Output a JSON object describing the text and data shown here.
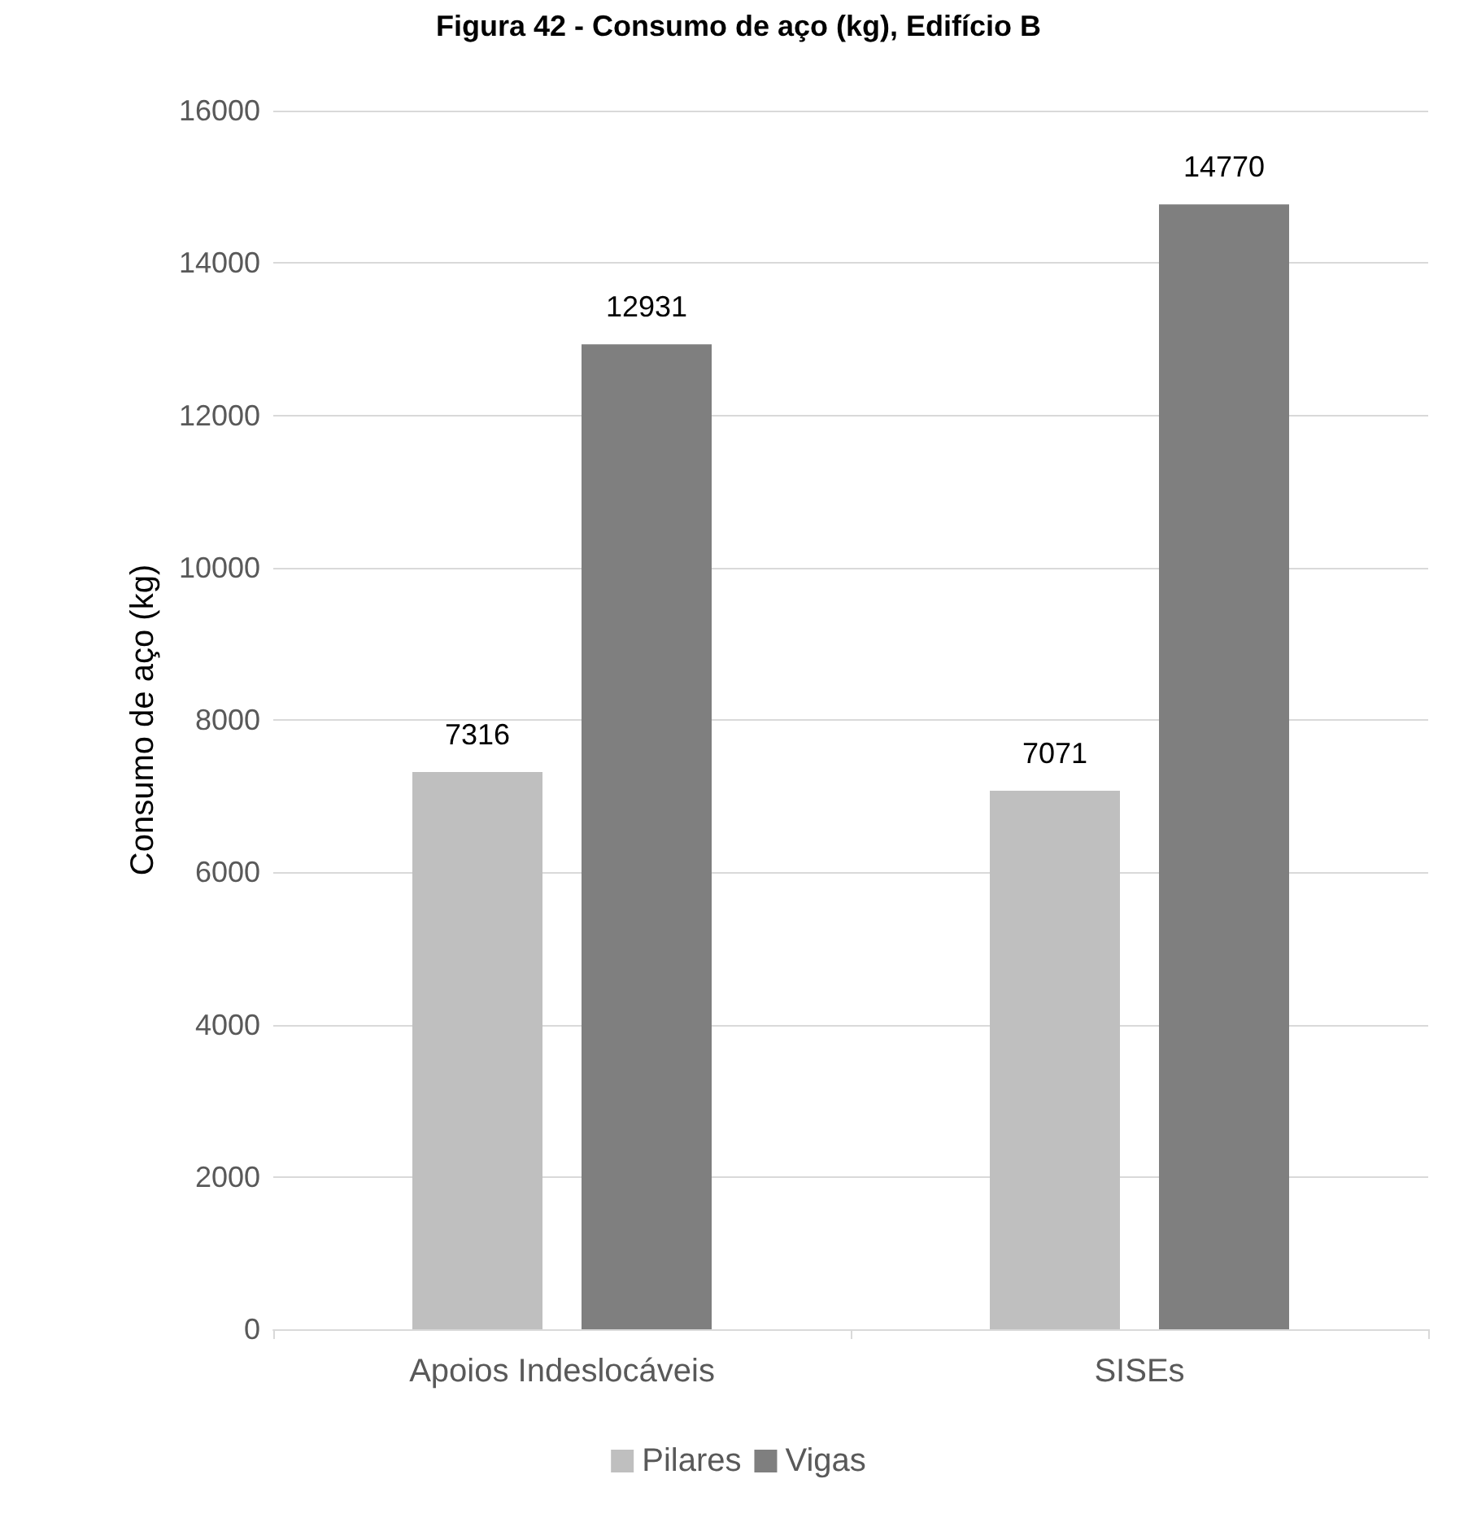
{
  "chart_data": {
    "type": "bar",
    "title": "Figura 42 - Consumo de aço (kg), Edifício B",
    "ylabel": "Consumo de aço (kg)",
    "categories": [
      "Apoios Indeslocáveis",
      "SISEs"
    ],
    "series": [
      {
        "name": "Pilares",
        "color": "#bfbfbf",
        "values": [
          7316,
          7071
        ]
      },
      {
        "name": "Vigas",
        "color": "#7f7f7f",
        "values": [
          12931,
          14770
        ]
      }
    ],
    "ylim": [
      0,
      16000
    ],
    "yticks": [
      0,
      2000,
      4000,
      6000,
      8000,
      10000,
      12000,
      14000,
      16000
    ],
    "grid": "y",
    "legend": "bottom",
    "data_labels": true
  }
}
